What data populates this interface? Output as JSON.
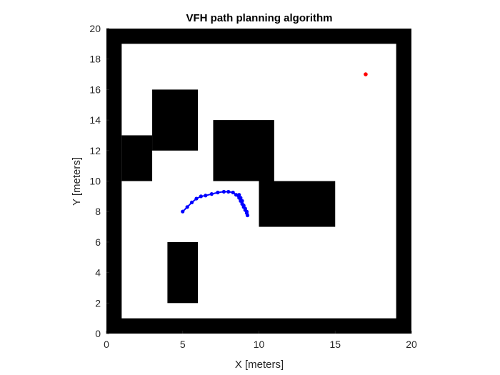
{
  "chart_data": {
    "type": "scatter",
    "title": "VFH path planning algorithm",
    "xlabel": "X [meters]",
    "ylabel": "Y [meters]",
    "xlim": [
      0,
      20
    ],
    "ylim": [
      0,
      20
    ],
    "xticks": [
      "0",
      "5",
      "10",
      "15",
      "20"
    ],
    "yticks": [
      "0",
      "2",
      "4",
      "6",
      "8",
      "10",
      "12",
      "14",
      "16",
      "18",
      "20"
    ],
    "grid": false,
    "background_color": "#000000",
    "free_space_color": "#ffffff",
    "obstacle_color": "#000000",
    "path_color": "#0000ff",
    "goal_color": "#ff0000",
    "free_space": {
      "x": [
        1,
        19
      ],
      "y": [
        1,
        19
      ]
    },
    "obstacles": [
      {
        "x": [
          1,
          3
        ],
        "y": [
          10,
          13
        ]
      },
      {
        "x": [
          3,
          6
        ],
        "y": [
          12,
          16
        ]
      },
      {
        "x": [
          7,
          11
        ],
        "y": [
          10,
          14
        ]
      },
      {
        "x": [
          10,
          15
        ],
        "y": [
          7,
          10
        ]
      },
      {
        "x": [
          4,
          6
        ],
        "y": [
          2,
          6
        ]
      }
    ],
    "series": [
      {
        "type": "line-markers",
        "x": [
          5.0,
          5.3,
          5.6,
          5.9,
          6.2,
          6.5,
          6.9,
          7.3,
          7.7,
          8.0,
          8.3,
          8.5,
          8.7,
          8.8,
          8.9,
          9.0,
          9.1,
          9.2,
          9.25,
          9.2,
          9.1,
          9.0,
          8.9,
          8.8,
          8.7
        ],
        "y": [
          8.0,
          8.3,
          8.6,
          8.85,
          9.0,
          9.05,
          9.15,
          9.25,
          9.3,
          9.3,
          9.25,
          9.1,
          8.9,
          8.7,
          8.5,
          8.3,
          8.1,
          7.9,
          7.75,
          8.0,
          8.2,
          8.4,
          8.7,
          8.9,
          9.1
        ]
      },
      {
        "type": "point",
        "x": [
          17
        ],
        "y": [
          17
        ]
      }
    ]
  }
}
